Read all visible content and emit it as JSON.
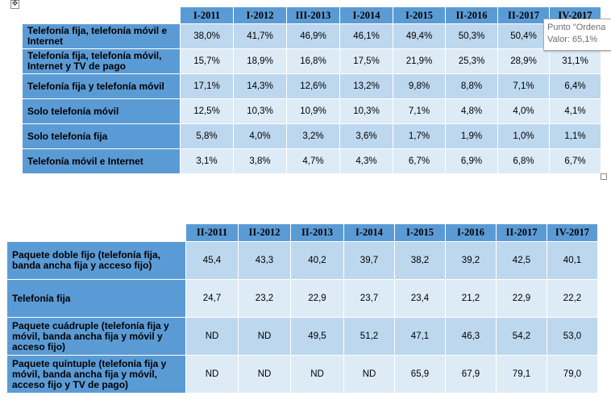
{
  "move_handle_glyph": "✥",
  "table1": {
    "headers": [
      "I-2011",
      "I-2012",
      "III-2013",
      "I-2014",
      "I-2015",
      "II-2016",
      "II-2017",
      "IV-2017"
    ],
    "rows": [
      {
        "label": "Telefonía fija, telefonía móvil e Internet",
        "values": [
          "38,0%",
          "41,7%",
          "46,9%",
          "46,1%",
          "49,4%",
          "50,3%",
          "50,4%",
          ""
        ]
      },
      {
        "label": "Telefonía fija, telefonía móvil, Internet y TV de pago",
        "values": [
          "15,7%",
          "18,9%",
          "16,8%",
          "17,5%",
          "21,9%",
          "25,3%",
          "28,9%",
          "31,1%"
        ]
      },
      {
        "label": "Telefonía fija y telefonía móvil",
        "values": [
          "17,1%",
          "14,3%",
          "12,6%",
          "13,2%",
          "9,8%",
          "8,8%",
          "7,1%",
          "6,4%"
        ]
      },
      {
        "label": "Solo telefonía móvil",
        "values": [
          "12,5%",
          "10,3%",
          "10,9%",
          "10,3%",
          "7,1%",
          "4,8%",
          "4,0%",
          "4,1%"
        ]
      },
      {
        "label": "Solo telefonía fija",
        "values": [
          "5,8%",
          "4,0%",
          "3,2%",
          "3,6%",
          "1,7%",
          "1,9%",
          "1,0%",
          "1,1%"
        ]
      },
      {
        "label": "Telefonía móvil e Internet",
        "values": [
          "3,1%",
          "3,8%",
          "4,7%",
          "4,3%",
          "6,7%",
          "6,9%",
          "6,8%",
          "6,7%"
        ]
      }
    ]
  },
  "tooltip": {
    "line1": "Punto \"Ordena",
    "line2": "Valor: 65,1%"
  },
  "table2": {
    "headers": [
      "II-2011",
      "II-2012",
      "II-2013",
      "I-2014",
      "I-2015",
      "I-2016",
      "II-2017",
      "IV-2017"
    ],
    "rows": [
      {
        "label": "Paquete doble fijo (telefonía fija, banda ancha fija y acceso fijo)",
        "values": [
          "45,4",
          "43,3",
          "40,2",
          "39,7",
          "38,2",
          "39,2",
          "42,5",
          "40,1"
        ]
      },
      {
        "label": "Telefonía fija",
        "values": [
          "24,7",
          "23,2",
          "22,9",
          "23,7",
          "23,4",
          "21,2",
          "22,9",
          "22,2"
        ]
      },
      {
        "label": "Paquete cuádruple (telefonía fija y móvil, banda ancha fija y móvil y acceso fijo)",
        "values": [
          "ND",
          "ND",
          "49,5",
          "51,2",
          "47,1",
          "46,3",
          "54,2",
          "53,0"
        ]
      },
      {
        "label": "Paquete quíntuple (telefonía fija y móvil, banda ancha fija y móvil, acceso fijo y TV de pago)",
        "values": [
          "ND",
          "ND",
          "ND",
          "ND",
          "65,9",
          "67,9",
          "79,1",
          "79,0"
        ]
      }
    ]
  }
}
